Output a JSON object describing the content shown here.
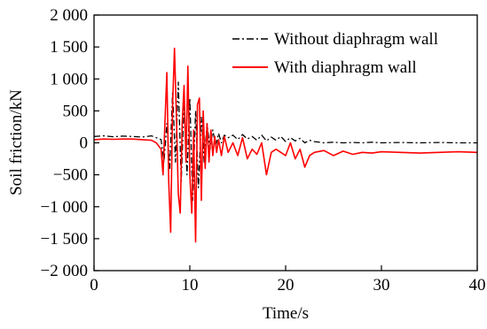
{
  "chart_data": {
    "type": "line",
    "title": "",
    "xlabel": "Time/s",
    "ylabel": "Soil friction/kN",
    "xlim": [
      0,
      40
    ],
    "ylim": [
      -2000,
      2000
    ],
    "xticks": [
      0,
      10,
      20,
      30,
      40
    ],
    "yticks": [
      2000,
      1500,
      1000,
      500,
      0,
      -500,
      -1000,
      -1500,
      -2000
    ],
    "xtick_labels": [
      "0",
      "10",
      "20",
      "30",
      "40"
    ],
    "ytick_labels": [
      "2 000",
      "1 500",
      "1 000",
      "500",
      "0",
      "−500",
      "−1 000",
      "−1 500",
      "−2 000"
    ],
    "grid": false,
    "legend_position": "top-right",
    "series": [
      {
        "name": "Without diaphragm wall",
        "color": "#000000",
        "line_style": "dash-dot",
        "x": [
          0,
          1,
          2,
          3,
          4,
          5,
          6,
          6.5,
          7,
          7.3,
          7.6,
          7.9,
          8.2,
          8.5,
          8.8,
          9.1,
          9.4,
          9.7,
          10,
          10.3,
          10.6,
          10.9,
          11.2,
          11.5,
          11.8,
          12.1,
          12.4,
          12.7,
          13,
          13.3,
          13.6,
          14,
          14.5,
          15,
          15.5,
          16,
          16.5,
          17,
          17.5,
          18,
          18.5,
          19,
          19.5,
          20,
          20.5,
          21,
          21.5,
          22,
          22.5,
          23,
          24,
          25,
          26,
          27,
          28,
          29,
          30,
          32,
          34,
          36,
          38,
          40
        ],
        "y": [
          100,
          110,
          95,
          105,
          100,
          90,
          110,
          80,
          50,
          -300,
          300,
          -400,
          800,
          -300,
          950,
          -600,
          600,
          -500,
          700,
          -900,
          500,
          -700,
          400,
          -300,
          300,
          -100,
          200,
          -50,
          150,
          0,
          120,
          80,
          120,
          50,
          130,
          60,
          100,
          40,
          120,
          30,
          90,
          40,
          100,
          20,
          80,
          30,
          70,
          0,
          40,
          20,
          0,
          10,
          0,
          5,
          0,
          10,
          0,
          5,
          0,
          5,
          0,
          0
        ]
      },
      {
        "name": "With diaphragm wall",
        "color": "#ff0000",
        "line_style": "solid",
        "x": [
          0,
          1,
          2,
          3,
          4,
          5,
          6,
          6.5,
          7,
          7.2,
          7.4,
          7.6,
          7.8,
          8.0,
          8.2,
          8.4,
          8.6,
          8.8,
          9.0,
          9.2,
          9.4,
          9.6,
          9.8,
          10.0,
          10.2,
          10.4,
          10.6,
          10.8,
          11.0,
          11.2,
          11.4,
          11.6,
          11.8,
          12.0,
          12.2,
          12.4,
          12.6,
          12.8,
          13.0,
          13.3,
          13.6,
          14.0,
          14.5,
          15,
          15.5,
          16,
          16.5,
          17,
          17.5,
          18,
          18.5,
          19,
          19.5,
          20,
          20.5,
          21,
          21.5,
          22,
          22.5,
          23,
          24,
          25,
          26,
          27,
          28,
          29,
          30,
          32,
          34,
          36,
          38,
          40
        ],
        "y": [
          50,
          60,
          55,
          60,
          60,
          50,
          40,
          0,
          -100,
          -500,
          300,
          1100,
          -600,
          -1400,
          600,
          1480,
          400,
          -800,
          -1100,
          300,
          900,
          -300,
          1200,
          -500,
          -1100,
          200,
          -1550,
          600,
          700,
          -900,
          500,
          -400,
          300,
          -300,
          200,
          -200,
          100,
          -150,
          50,
          -200,
          100,
          -150,
          0,
          -200,
          80,
          -250,
          -100,
          -180,
          0,
          -500,
          -150,
          -100,
          -150,
          -200,
          0,
          -250,
          -100,
          -380,
          -200,
          -150,
          -120,
          -200,
          -130,
          -180,
          -150,
          -160,
          -140,
          -150,
          -160,
          -150,
          -140,
          -150
        ]
      }
    ]
  }
}
